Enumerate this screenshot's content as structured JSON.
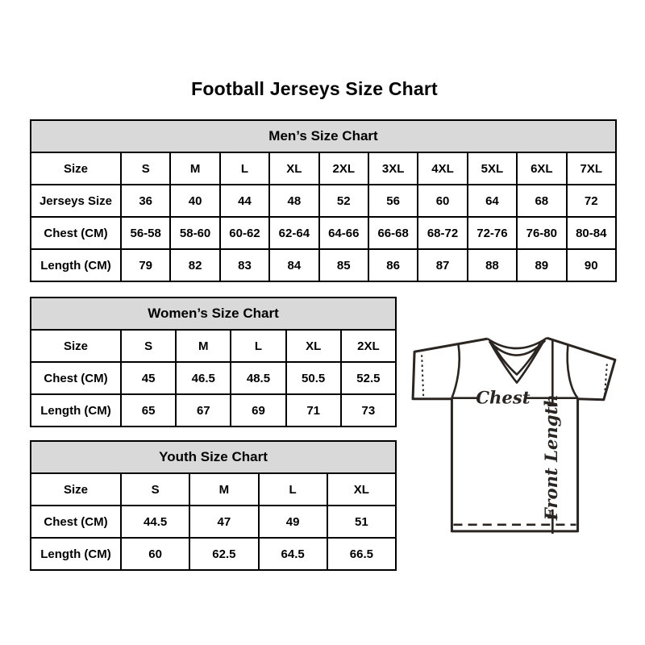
{
  "page": {
    "title": "Football Jerseys Size Chart"
  },
  "colors": {
    "page_bg": "#ffffff",
    "header_bg": "#d9d9d9",
    "border": "#000000",
    "text": "#000000",
    "line": "#2b2522"
  },
  "tables": {
    "mens": {
      "title": "Men’s Size Chart",
      "rows": [
        {
          "label": "Size",
          "values": [
            "S",
            "M",
            "L",
            "XL",
            "2XL",
            "3XL",
            "4XL",
            "5XL",
            "6XL",
            "7XL"
          ]
        },
        {
          "label": "Jerseys Size",
          "values": [
            "36",
            "40",
            "44",
            "48",
            "52",
            "56",
            "60",
            "64",
            "68",
            "72"
          ]
        },
        {
          "label": "Chest (CM)",
          "values": [
            "56-58",
            "58-60",
            "60-62",
            "62-64",
            "64-66",
            "66-68",
            "68-72",
            "72-76",
            "76-80",
            "80-84"
          ]
        },
        {
          "label": "Length (CM)",
          "values": [
            "79",
            "82",
            "83",
            "84",
            "85",
            "86",
            "87",
            "88",
            "89",
            "90"
          ]
        }
      ]
    },
    "womens": {
      "title": "Women’s Size Chart",
      "rows": [
        {
          "label": "Size",
          "values": [
            "S",
            "M",
            "L",
            "XL",
            "2XL"
          ]
        },
        {
          "label": "Chest (CM)",
          "values": [
            "45",
            "46.5",
            "48.5",
            "50.5",
            "52.5"
          ]
        },
        {
          "label": "Length (CM)",
          "values": [
            "65",
            "67",
            "69",
            "71",
            "73"
          ]
        }
      ]
    },
    "youth": {
      "title": "Youth Size Chart",
      "rows": [
        {
          "label": "Size",
          "values": [
            "S",
            "M",
            "L",
            "XL"
          ]
        },
        {
          "label": "Chest (CM)",
          "values": [
            "44.5",
            "47",
            "49",
            "51"
          ]
        },
        {
          "label": "Length (CM)",
          "values": [
            "60",
            "62.5",
            "64.5",
            "66.5"
          ]
        }
      ]
    }
  },
  "diagram": {
    "chest_label": "Chest",
    "front_length_label": "Front Length"
  }
}
